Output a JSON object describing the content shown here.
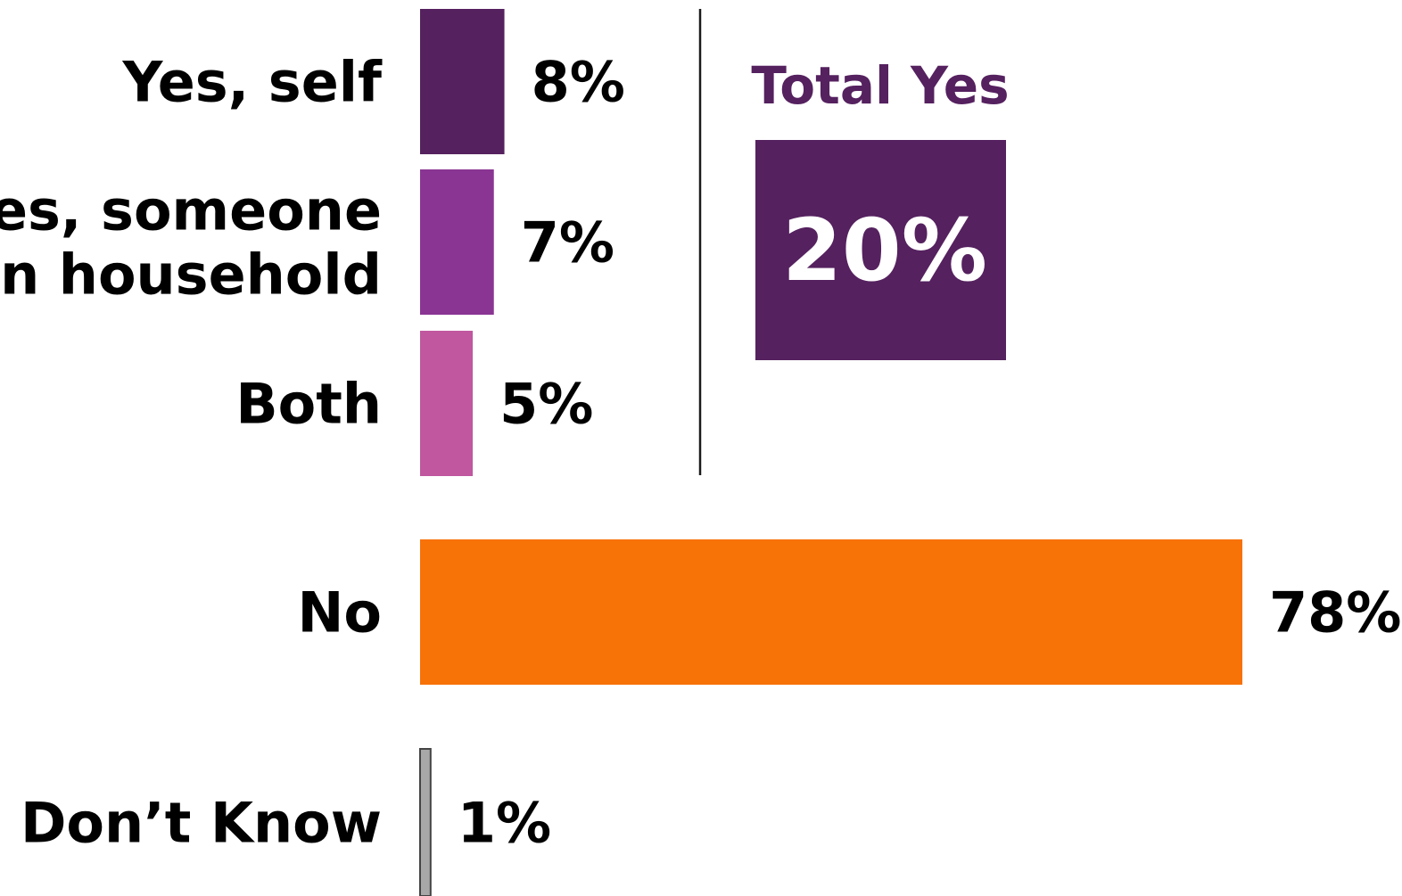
{
  "chart_data": {
    "type": "bar",
    "orientation": "horizontal",
    "categories": [
      [
        "Yes, self"
      ],
      [
        "Yes, someone",
        "in household"
      ],
      [
        "Both"
      ],
      [
        "No"
      ],
      [
        "Don’t Know"
      ]
    ],
    "values": [
      8,
      7,
      5,
      78,
      1
    ],
    "value_labels": [
      "8%",
      "7%",
      "5%",
      "78%",
      "1%"
    ],
    "colors": [
      "#55215f",
      "#8a3593",
      "#c0579f",
      "#f77207",
      "#a8a8a8"
    ],
    "xlim": [
      0,
      78
    ],
    "grid": false,
    "legend": "none",
    "title": "",
    "xlabel": "",
    "ylabel": "",
    "total_yes": {
      "title": "Total Yes",
      "value": "20%",
      "title_color": "#55215f",
      "box_color": "#55215f"
    }
  }
}
